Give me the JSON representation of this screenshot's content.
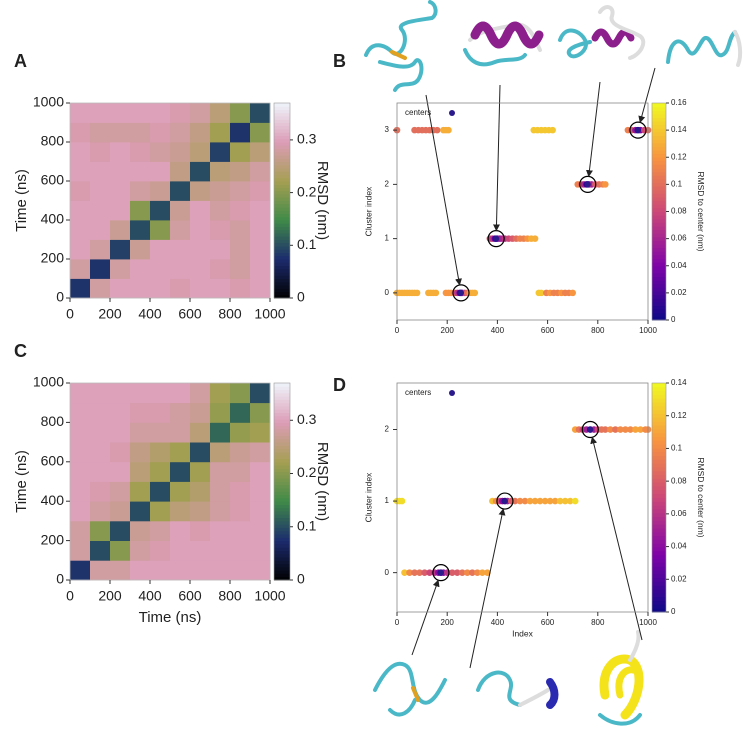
{
  "chart_data": [
    {
      "type": "heatmap",
      "panel_label": "A",
      "ylabel": "Time (ns)",
      "colorbar_label": "RMSD (nm)",
      "xlim": [
        0,
        1000
      ],
      "ylim": [
        0,
        1000
      ],
      "xticks": [
        0,
        200,
        400,
        600,
        800,
        1000
      ],
      "yticks": [
        0,
        200,
        400,
        600,
        800,
        1000
      ],
      "clim": [
        0,
        0.37
      ],
      "cticks": [
        0,
        0.1,
        0.2,
        0.3
      ],
      "colormap": [
        "#000000",
        "#1c2b6e",
        "#3f8a48",
        "#a59f52",
        "#dc9cb6",
        "#eef4fa"
      ],
      "values": [
        [
          0.08,
          0.28,
          0.3,
          0.3,
          0.3,
          0.29,
          0.3,
          0.3,
          0.29,
          0.3
        ],
        [
          0.28,
          0.08,
          0.28,
          0.3,
          0.3,
          0.3,
          0.3,
          0.29,
          0.28,
          0.3
        ],
        [
          0.3,
          0.28,
          0.09,
          0.27,
          0.3,
          0.3,
          0.3,
          0.3,
          0.28,
          0.3
        ],
        [
          0.3,
          0.3,
          0.27,
          0.1,
          0.2,
          0.28,
          0.3,
          0.29,
          0.28,
          0.3
        ],
        [
          0.3,
          0.3,
          0.3,
          0.2,
          0.1,
          0.27,
          0.3,
          0.28,
          0.29,
          0.3
        ],
        [
          0.29,
          0.3,
          0.3,
          0.28,
          0.27,
          0.1,
          0.26,
          0.27,
          0.28,
          0.29
        ],
        [
          0.3,
          0.3,
          0.3,
          0.3,
          0.3,
          0.26,
          0.1,
          0.25,
          0.26,
          0.28
        ],
        [
          0.3,
          0.29,
          0.3,
          0.29,
          0.28,
          0.27,
          0.25,
          0.09,
          0.22,
          0.25
        ],
        [
          0.29,
          0.28,
          0.28,
          0.28,
          0.29,
          0.28,
          0.26,
          0.22,
          0.08,
          0.2
        ],
        [
          0.3,
          0.3,
          0.3,
          0.3,
          0.3,
          0.29,
          0.28,
          0.25,
          0.2,
          0.1
        ]
      ]
    },
    {
      "type": "scatter",
      "panel_label": "B",
      "ylabel": "Cluster index",
      "colorbar_label": "RMSD to center (nm)",
      "xlim": [
        0,
        1000
      ],
      "ylim": [
        -0.5,
        3.5
      ],
      "xticks": [
        0,
        200,
        400,
        600,
        800,
        1000
      ],
      "yticks": [
        0,
        1,
        2,
        3
      ],
      "clim": [
        0,
        0.16
      ],
      "cticks": [
        0,
        0.02,
        0.04,
        0.06,
        0.08,
        0.1,
        0.12,
        0.14,
        0.16
      ],
      "colormap": [
        "#0d0887",
        "#7e03a8",
        "#cc4778",
        "#f89540",
        "#f0f921"
      ],
      "series": [
        {
          "x": [
            0,
            10,
            20,
            30,
            40,
            50,
            60,
            70,
            80,
            125,
            135,
            145,
            155,
            195,
            205,
            215,
            230,
            240,
            250,
            255,
            260,
            270,
            280,
            290,
            300,
            310,
            565,
            575,
            595,
            610,
            625,
            640,
            655,
            670,
            685,
            700,
            370,
            380,
            390,
            395,
            400,
            410,
            420,
            430,
            445,
            460,
            475,
            490,
            505,
            520,
            535,
            550,
            720,
            735,
            745,
            755,
            760,
            765,
            775,
            790,
            805,
            820,
            830,
            0,
            70,
            85,
            100,
            115,
            130,
            145,
            160,
            185,
            195,
            205,
            545,
            560,
            575,
            590,
            605,
            620,
            920,
            935,
            950,
            960,
            970,
            985,
            1000
          ],
          "values": [
            0,
            0,
            0,
            0,
            0,
            0,
            0,
            0,
            0,
            0,
            0,
            0,
            0,
            0,
            0,
            0,
            0,
            0,
            0,
            0,
            0,
            0,
            0,
            0,
            0,
            0,
            0,
            0,
            0,
            0,
            0,
            0,
            0,
            0,
            0,
            0,
            1,
            1,
            1,
            1,
            1,
            1,
            1,
            1,
            1,
            1,
            1,
            1,
            1,
            1,
            1,
            1,
            2,
            2,
            2,
            2,
            2,
            2,
            2,
            2,
            2,
            2,
            2,
            3,
            3,
            3,
            3,
            3,
            3,
            3,
            3,
            3,
            3,
            3,
            3,
            3,
            3,
            3,
            3,
            3,
            3,
            3,
            3,
            3,
            3,
            3,
            3
          ],
          "color_values": [
            0.13,
            0.13,
            0.13,
            0.13,
            0.13,
            0.13,
            0.13,
            0.13,
            0.13,
            0.13,
            0.13,
            0.13,
            0.13,
            0.12,
            0.12,
            0.12,
            0.1,
            0.07,
            0.03,
            0,
            0.04,
            0.08,
            0.1,
            0.12,
            0.13,
            0.13,
            0.14,
            0.14,
            0.11,
            0.12,
            0.11,
            0.11,
            0.12,
            0.11,
            0.11,
            0.12,
            0.09,
            0.07,
            0.03,
            0,
            0.03,
            0.05,
            0.06,
            0.07,
            0.08,
            0.09,
            0.1,
            0.11,
            0.11,
            0.12,
            0.13,
            0.13,
            0.11,
            0.09,
            0.06,
            0.02,
            0,
            0.03,
            0.06,
            0.09,
            0.1,
            0.11,
            0.12,
            0.1,
            0.1,
            0.1,
            0.1,
            0.1,
            0.1,
            0.1,
            0.1,
            0.13,
            0.13,
            0.13,
            0.14,
            0.14,
            0.14,
            0.14,
            0.14,
            0.14,
            0.11,
            0.09,
            0.05,
            0,
            0.04,
            0.08,
            0.1
          ]
        },
        {
          "name": "centers",
          "color": "#2b1a8c",
          "x": [
            255,
            395,
            760,
            960
          ],
          "values": [
            0,
            1,
            2,
            3
          ]
        }
      ]
    },
    {
      "type": "heatmap",
      "panel_label": "C",
      "ylabel": "Time (ns)",
      "xlabel": "Time (ns)",
      "colorbar_label": "RMSD (nm)",
      "xlim": [
        0,
        1000
      ],
      "ylim": [
        0,
        1000
      ],
      "xticks": [
        0,
        200,
        400,
        600,
        800,
        1000
      ],
      "yticks": [
        0,
        200,
        400,
        600,
        800,
        1000
      ],
      "clim": [
        0,
        0.37
      ],
      "cticks": [
        0,
        0.1,
        0.2,
        0.3
      ],
      "colormap": [
        "#000000",
        "#1c2b6e",
        "#3f8a48",
        "#a59f52",
        "#dc9cb6",
        "#eef4fa"
      ],
      "values": [
        [
          0.08,
          0.28,
          0.28,
          0.3,
          0.3,
          0.3,
          0.3,
          0.3,
          0.3,
          0.3
        ],
        [
          0.28,
          0.1,
          0.2,
          0.28,
          0.29,
          0.3,
          0.3,
          0.3,
          0.3,
          0.3
        ],
        [
          0.28,
          0.2,
          0.1,
          0.27,
          0.28,
          0.3,
          0.29,
          0.3,
          0.3,
          0.3
        ],
        [
          0.3,
          0.28,
          0.27,
          0.1,
          0.22,
          0.25,
          0.26,
          0.28,
          0.29,
          0.3
        ],
        [
          0.3,
          0.29,
          0.28,
          0.22,
          0.1,
          0.22,
          0.24,
          0.28,
          0.29,
          0.3
        ],
        [
          0.3,
          0.3,
          0.3,
          0.25,
          0.22,
          0.1,
          0.22,
          0.28,
          0.28,
          0.3
        ],
        [
          0.3,
          0.3,
          0.29,
          0.26,
          0.24,
          0.22,
          0.1,
          0.25,
          0.27,
          0.28
        ],
        [
          0.3,
          0.3,
          0.3,
          0.28,
          0.28,
          0.28,
          0.25,
          0.12,
          0.21,
          0.22
        ],
        [
          0.3,
          0.3,
          0.3,
          0.29,
          0.29,
          0.28,
          0.27,
          0.21,
          0.12,
          0.2
        ],
        [
          0.3,
          0.3,
          0.3,
          0.3,
          0.3,
          0.3,
          0.28,
          0.22,
          0.2,
          0.1
        ]
      ]
    },
    {
      "type": "scatter",
      "panel_label": "D",
      "ylabel": "Cluster index",
      "xlabel": "Index",
      "colorbar_label": "RMSD to center (nm)",
      "xlim": [
        0,
        1000
      ],
      "ylim": [
        -0.55,
        2.65
      ],
      "xticks": [
        0,
        200,
        400,
        600,
        800,
        1000
      ],
      "yticks": [
        0,
        1,
        2
      ],
      "clim": [
        0,
        0.14
      ],
      "cticks": [
        0,
        0.02,
        0.04,
        0.06,
        0.08,
        0.1,
        0.12,
        0.14
      ],
      "colormap": [
        "#0d0887",
        "#7e03a8",
        "#cc4778",
        "#f89540",
        "#f0f921"
      ],
      "series": [
        {
          "x": [
            30,
            50,
            70,
            90,
            110,
            130,
            150,
            165,
            175,
            185,
            200,
            220,
            240,
            260,
            280,
            300,
            320,
            340,
            360,
            0,
            10,
            20,
            380,
            395,
            410,
            420,
            430,
            440,
            455,
            470,
            490,
            510,
            530,
            550,
            570,
            590,
            610,
            630,
            650,
            670,
            690,
            710,
            710,
            725,
            740,
            755,
            770,
            785,
            800,
            815,
            830,
            850,
            870,
            890,
            910,
            930,
            950,
            970,
            990,
            1000
          ],
          "values": [
            0,
            0,
            0,
            0,
            0,
            0,
            0,
            0,
            0,
            0,
            0,
            0,
            0,
            0,
            0,
            0,
            0,
            0,
            0,
            1,
            1,
            1,
            1,
            1,
            1,
            1,
            1,
            1,
            1,
            1,
            1,
            1,
            1,
            1,
            1,
            1,
            1,
            1,
            1,
            1,
            1,
            1,
            2,
            2,
            2,
            2,
            2,
            2,
            2,
            2,
            2,
            2,
            2,
            2,
            2,
            2,
            2,
            2,
            2,
            2
          ],
          "color_values": [
            0.12,
            0.1,
            0.09,
            0.09,
            0.08,
            0.07,
            0.06,
            0.04,
            0,
            0.04,
            0.06,
            0.08,
            0.08,
            0.09,
            0.1,
            0.09,
            0.1,
            0.11,
            0.11,
            0.13,
            0.13,
            0.13,
            0.12,
            0.1,
            0.07,
            0.04,
            0,
            0.05,
            0.08,
            0.09,
            0.1,
            0.1,
            0.11,
            0.11,
            0.11,
            0.11,
            0.11,
            0.11,
            0.12,
            0.12,
            0.12,
            0.13,
            0.11,
            0.09,
            0.07,
            0.05,
            0,
            0.05,
            0.07,
            0.09,
            0.09,
            0.1,
            0.09,
            0.1,
            0.1,
            0.1,
            0.11,
            0.11,
            0.1,
            0.1
          ]
        },
        {
          "name": "centers",
          "color": "#2b1a8c",
          "x": [
            175,
            430,
            770
          ],
          "values": [
            0,
            1,
            2
          ]
        }
      ]
    }
  ]
}
